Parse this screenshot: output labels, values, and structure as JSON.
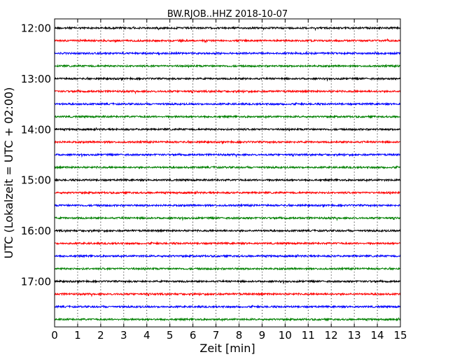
{
  "chart_data": {
    "type": "line",
    "title": "BW.RJOB..HHZ 2018-10-07",
    "xlabel": "Zeit  [min]",
    "ylabel": "UTC (Lokalzeit = UTC + 02:00)",
    "xlim": [
      0,
      15
    ],
    "x_ticks": [
      "0",
      "1",
      "2",
      "3",
      "4",
      "5",
      "6",
      "7",
      "8",
      "9",
      "10",
      "11",
      "12",
      "13",
      "14",
      "15"
    ],
    "y_ticks": [
      "12:00",
      "13:00",
      "14:00",
      "15:00",
      "16:00",
      "17:00"
    ],
    "trace_start": "12:00",
    "trace_interval_min": 15,
    "trace_count": 24,
    "trace_colors": [
      "#000000",
      "#ff0000",
      "#0000ff",
      "#008000"
    ],
    "grid": "vertical dotted",
    "legend": "none"
  }
}
